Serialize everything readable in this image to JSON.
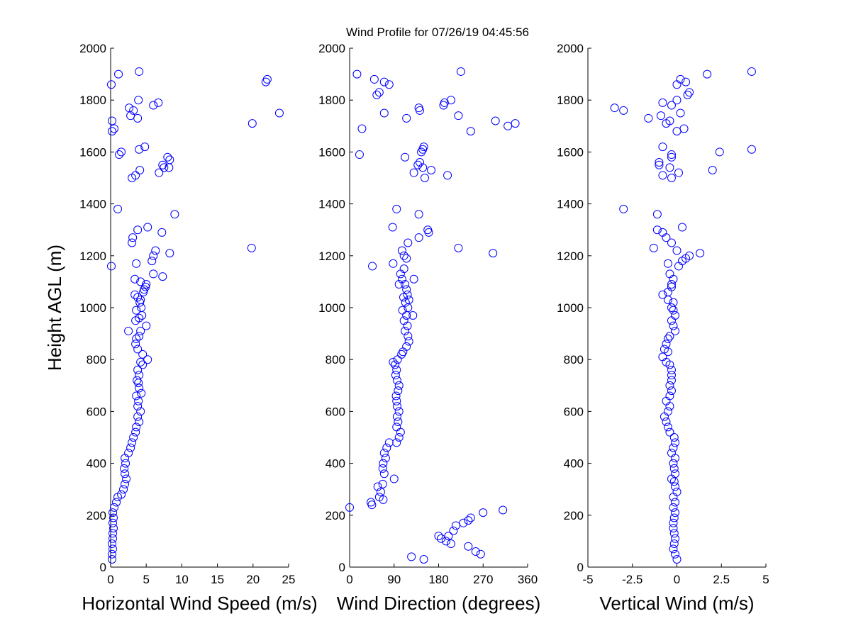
{
  "figure_title": "Wind Profile for  07/26/19 04:45:56",
  "chart_data": [
    {
      "type": "scatter",
      "xlabel": "Horizontal Wind Speed (m/s)",
      "ylabel": "Height AGL (m)",
      "xlim": [
        0,
        25
      ],
      "ylim": [
        0,
        2000
      ],
      "xticks": [
        0,
        5,
        10,
        15,
        20,
        25
      ],
      "xtick_labels": [
        "0",
        "5",
        "10",
        "15",
        "20",
        "25"
      ],
      "yticks": [
        0,
        200,
        400,
        600,
        800,
        1000,
        1200,
        1400,
        1600,
        1800,
        2000
      ],
      "ytick_labels": [
        "0",
        "200",
        "400",
        "600",
        "800",
        "1000",
        "1200",
        "1400",
        "1600",
        "1800",
        "2000"
      ],
      "points": [
        [
          0.2,
          30
        ],
        [
          0.2,
          50
        ],
        [
          0.3,
          70
        ],
        [
          0.2,
          90
        ],
        [
          0.3,
          110
        ],
        [
          0.3,
          130
        ],
        [
          0.4,
          150
        ],
        [
          0.3,
          170
        ],
        [
          0.4,
          190
        ],
        [
          0.3,
          210
        ],
        [
          0.5,
          230
        ],
        [
          0.8,
          250
        ],
        [
          1.0,
          270
        ],
        [
          1.5,
          280
        ],
        [
          1.8,
          300
        ],
        [
          2.0,
          320
        ],
        [
          2.2,
          340
        ],
        [
          2.0,
          360
        ],
        [
          1.9,
          380
        ],
        [
          2.1,
          400
        ],
        [
          2.0,
          420
        ],
        [
          2.5,
          440
        ],
        [
          2.8,
          460
        ],
        [
          3.0,
          480
        ],
        [
          3.2,
          500
        ],
        [
          3.5,
          520
        ],
        [
          3.6,
          540
        ],
        [
          4.0,
          560
        ],
        [
          3.8,
          580
        ],
        [
          4.2,
          600
        ],
        [
          3.8,
          620
        ],
        [
          3.9,
          640
        ],
        [
          3.6,
          660
        ],
        [
          4.3,
          670
        ],
        [
          4.0,
          690
        ],
        [
          3.9,
          710
        ],
        [
          3.7,
          720
        ],
        [
          4.0,
          740
        ],
        [
          3.8,
          760
        ],
        [
          4.5,
          780
        ],
        [
          4.2,
          790
        ],
        [
          5.2,
          800
        ],
        [
          4.5,
          820
        ],
        [
          3.8,
          840
        ],
        [
          3.5,
          860
        ],
        [
          3.6,
          880
        ],
        [
          4.0,
          890
        ],
        [
          4.2,
          910
        ],
        [
          2.5,
          910
        ],
        [
          5.0,
          930
        ],
        [
          3.5,
          950
        ],
        [
          4.0,
          960
        ],
        [
          4.4,
          970
        ],
        [
          3.6,
          990
        ],
        [
          4.3,
          1000
        ],
        [
          4.1,
          1020
        ],
        [
          4.2,
          1030
        ],
        [
          3.8,
          1040
        ],
        [
          3.4,
          1050
        ],
        [
          4.6,
          1060
        ],
        [
          4.7,
          1070
        ],
        [
          4.9,
          1080
        ],
        [
          5.0,
          1090
        ],
        [
          4.2,
          1100
        ],
        [
          3.4,
          1110
        ],
        [
          7.3,
          1120
        ],
        [
          6.0,
          1130
        ],
        [
          0.1,
          1160
        ],
        [
          3.6,
          1170
        ],
        [
          5.8,
          1180
        ],
        [
          6.0,
          1200
        ],
        [
          8.3,
          1210
        ],
        [
          6.3,
          1220
        ],
        [
          19.8,
          1230
        ],
        [
          3.0,
          1250
        ],
        [
          3.1,
          1270
        ],
        [
          7.2,
          1290
        ],
        [
          3.8,
          1300
        ],
        [
          5.2,
          1310
        ],
        [
          9.0,
          1360
        ],
        [
          1.0,
          1380
        ],
        [
          3.0,
          1500
        ],
        [
          3.5,
          1510
        ],
        [
          6.8,
          1520
        ],
        [
          4.1,
          1530
        ],
        [
          7.5,
          1540
        ],
        [
          8.2,
          1540
        ],
        [
          7.3,
          1550
        ],
        [
          8.3,
          1570
        ],
        [
          8.0,
          1580
        ],
        [
          1.2,
          1590
        ],
        [
          1.5,
          1600
        ],
        [
          4.0,
          1610
        ],
        [
          4.8,
          1620
        ],
        [
          0.2,
          1680
        ],
        [
          0.5,
          1690
        ],
        [
          19.9,
          1710
        ],
        [
          0.2,
          1720
        ],
        [
          3.8,
          1730
        ],
        [
          2.8,
          1740
        ],
        [
          23.7,
          1750
        ],
        [
          3.2,
          1760
        ],
        [
          2.6,
          1770
        ],
        [
          6.0,
          1780
        ],
        [
          6.7,
          1790
        ],
        [
          3.9,
          1800
        ],
        [
          0.1,
          1860
        ],
        [
          21.8,
          1870
        ],
        [
          22.0,
          1880
        ],
        [
          1.1,
          1900
        ],
        [
          4.0,
          1910
        ]
      ]
    },
    {
      "type": "scatter",
      "xlabel": "Wind Direction (degrees)",
      "ylabel": "",
      "xlim": [
        0,
        360
      ],
      "ylim": [
        0,
        2000
      ],
      "xticks": [
        0,
        90,
        180,
        270,
        360
      ],
      "xtick_labels": [
        "0",
        "90",
        "180",
        "270",
        "360"
      ],
      "yticks": [
        0,
        200,
        400,
        600,
        800,
        1000,
        1200,
        1400,
        1600,
        1800,
        2000
      ],
      "ytick_labels": [
        "0",
        "200",
        "400",
        "600",
        "800",
        "1000",
        "1200",
        "1400",
        "1600",
        "1800",
        "2000"
      ],
      "points": [
        [
          150,
          30
        ],
        [
          125,
          40
        ],
        [
          265,
          50
        ],
        [
          255,
          60
        ],
        [
          240,
          80
        ],
        [
          205,
          90
        ],
        [
          195,
          100
        ],
        [
          185,
          110
        ],
        [
          200,
          120
        ],
        [
          180,
          120
        ],
        [
          210,
          140
        ],
        [
          215,
          160
        ],
        [
          230,
          170
        ],
        [
          240,
          180
        ],
        [
          245,
          190
        ],
        [
          270,
          210
        ],
        [
          310,
          220
        ],
        [
          0,
          230
        ],
        [
          45,
          240
        ],
        [
          43,
          250
        ],
        [
          68,
          260
        ],
        [
          60,
          270
        ],
        [
          63,
          290
        ],
        [
          57,
          310
        ],
        [
          67,
          320
        ],
        [
          90,
          340
        ],
        [
          70,
          360
        ],
        [
          67,
          380
        ],
        [
          68,
          400
        ],
        [
          73,
          420
        ],
        [
          70,
          440
        ],
        [
          75,
          460
        ],
        [
          80,
          480
        ],
        [
          95,
          480
        ],
        [
          100,
          500
        ],
        [
          103,
          520
        ],
        [
          95,
          540
        ],
        [
          98,
          560
        ],
        [
          96,
          580
        ],
        [
          100,
          600
        ],
        [
          96,
          620
        ],
        [
          95,
          640
        ],
        [
          94,
          660
        ],
        [
          98,
          680
        ],
        [
          100,
          700
        ],
        [
          96,
          720
        ],
        [
          93,
          740
        ],
        [
          95,
          760
        ],
        [
          92,
          780
        ],
        [
          88,
          790
        ],
        [
          97,
          800
        ],
        [
          105,
          820
        ],
        [
          108,
          830
        ],
        [
          115,
          850
        ],
        [
          120,
          870
        ],
        [
          118,
          890
        ],
        [
          112,
          910
        ],
        [
          117,
          930
        ],
        [
          110,
          950
        ],
        [
          115,
          970
        ],
        [
          128,
          970
        ],
        [
          107,
          990
        ],
        [
          118,
          1000
        ],
        [
          113,
          1020
        ],
        [
          120,
          1030
        ],
        [
          109,
          1040
        ],
        [
          117,
          1050
        ],
        [
          115,
          1070
        ],
        [
          112,
          1090
        ],
        [
          100,
          1090
        ],
        [
          106,
          1110
        ],
        [
          130,
          1110
        ],
        [
          103,
          1130
        ],
        [
          110,
          1150
        ],
        [
          46,
          1160
        ],
        [
          88,
          1170
        ],
        [
          115,
          1190
        ],
        [
          110,
          1200
        ],
        [
          106,
          1220
        ],
        [
          290,
          1210
        ],
        [
          220,
          1230
        ],
        [
          118,
          1250
        ],
        [
          140,
          1270
        ],
        [
          160,
          1290
        ],
        [
          158,
          1300
        ],
        [
          87,
          1310
        ],
        [
          140,
          1360
        ],
        [
          95,
          1380
        ],
        [
          152,
          1500
        ],
        [
          198,
          1510
        ],
        [
          130,
          1520
        ],
        [
          165,
          1530
        ],
        [
          148,
          1540
        ],
        [
          138,
          1550
        ],
        [
          142,
          1560
        ],
        [
          112,
          1580
        ],
        [
          20,
          1590
        ],
        [
          145,
          1600
        ],
        [
          148,
          1610
        ],
        [
          150,
          1620
        ],
        [
          245,
          1680
        ],
        [
          25,
          1690
        ],
        [
          320,
          1700
        ],
        [
          335,
          1710
        ],
        [
          295,
          1720
        ],
        [
          115,
          1730
        ],
        [
          220,
          1740
        ],
        [
          70,
          1750
        ],
        [
          142,
          1760
        ],
        [
          140,
          1770
        ],
        [
          190,
          1780
        ],
        [
          192,
          1790
        ],
        [
          205,
          1800
        ],
        [
          55,
          1820
        ],
        [
          60,
          1830
        ],
        [
          80,
          1860
        ],
        [
          70,
          1870
        ],
        [
          50,
          1880
        ],
        [
          15,
          1900
        ],
        [
          225,
          1910
        ]
      ]
    },
    {
      "type": "scatter",
      "xlabel": "Vertical Wind (m/s)",
      "ylabel": "",
      "xlim": [
        -5,
        5
      ],
      "ylim": [
        0,
        2000
      ],
      "xticks": [
        -5,
        -2.5,
        0,
        2.5,
        5
      ],
      "xtick_labels": [
        "-5",
        "-2.5",
        "0",
        "2.5",
        "5"
      ],
      "yticks": [
        0,
        200,
        400,
        600,
        800,
        1000,
        1200,
        1400,
        1600,
        1800,
        2000
      ],
      "ytick_labels": [
        "0",
        "200",
        "400",
        "600",
        "800",
        "1000",
        "1200",
        "1400",
        "1600",
        "1800",
        "2000"
      ],
      "points": [
        [
          0.0,
          30
        ],
        [
          -0.1,
          50
        ],
        [
          -0.2,
          70
        ],
        [
          -0.15,
          90
        ],
        [
          -0.1,
          110
        ],
        [
          -0.15,
          130
        ],
        [
          -0.2,
          150
        ],
        [
          -0.2,
          170
        ],
        [
          -0.15,
          190
        ],
        [
          -0.1,
          210
        ],
        [
          -0.2,
          230
        ],
        [
          -0.1,
          250
        ],
        [
          -0.2,
          270
        ],
        [
          0.0,
          290
        ],
        [
          -0.1,
          310
        ],
        [
          -0.15,
          330
        ],
        [
          -0.3,
          340
        ],
        [
          -0.1,
          360
        ],
        [
          -0.15,
          380
        ],
        [
          -0.2,
          400
        ],
        [
          -0.1,
          420
        ],
        [
          -0.3,
          440
        ],
        [
          -0.2,
          460
        ],
        [
          -0.1,
          480
        ],
        [
          -0.15,
          500
        ],
        [
          -0.4,
          520
        ],
        [
          -0.5,
          540
        ],
        [
          -0.6,
          560
        ],
        [
          -0.7,
          580
        ],
        [
          -0.5,
          600
        ],
        [
          -0.4,
          620
        ],
        [
          -0.6,
          640
        ],
        [
          -0.4,
          660
        ],
        [
          -0.3,
          680
        ],
        [
          -0.4,
          700
        ],
        [
          -0.3,
          720
        ],
        [
          -0.3,
          740
        ],
        [
          -0.3,
          760
        ],
        [
          -0.4,
          780
        ],
        [
          -0.6,
          790
        ],
        [
          -0.8,
          810
        ],
        [
          -0.5,
          830
        ],
        [
          -0.7,
          840
        ],
        [
          -0.6,
          860
        ],
        [
          -0.5,
          880
        ],
        [
          -0.4,
          890
        ],
        [
          -0.1,
          910
        ],
        [
          -0.2,
          930
        ],
        [
          -0.3,
          950
        ],
        [
          -0.1,
          970
        ],
        [
          -0.2,
          990
        ],
        [
          -0.3,
          1000
        ],
        [
          -0.2,
          1020
        ],
        [
          -0.5,
          1030
        ],
        [
          -0.8,
          1050
        ],
        [
          -0.5,
          1060
        ],
        [
          -0.3,
          1080
        ],
        [
          -0.3,
          1090
        ],
        [
          -0.2,
          1110
        ],
        [
          -0.4,
          1130
        ],
        [
          0.1,
          1160
        ],
        [
          -0.5,
          1170
        ],
        [
          0.3,
          1180
        ],
        [
          0.5,
          1190
        ],
        [
          0.7,
          1200
        ],
        [
          1.3,
          1210
        ],
        [
          0.0,
          1220
        ],
        [
          -1.3,
          1230
        ],
        [
          -0.3,
          1250
        ],
        [
          -0.6,
          1270
        ],
        [
          -0.8,
          1290
        ],
        [
          -1.1,
          1300
        ],
        [
          0.3,
          1310
        ],
        [
          -1.1,
          1360
        ],
        [
          -3.0,
          1380
        ],
        [
          -0.3,
          1500
        ],
        [
          -0.8,
          1510
        ],
        [
          0.1,
          1520
        ],
        [
          2.0,
          1530
        ],
        [
          -0.4,
          1540
        ],
        [
          -1.0,
          1550
        ],
        [
          -1.0,
          1560
        ],
        [
          -0.3,
          1580
        ],
        [
          -0.3,
          1590
        ],
        [
          2.4,
          1600
        ],
        [
          4.2,
          1610
        ],
        [
          -0.8,
          1620
        ],
        [
          0.0,
          1680
        ],
        [
          0.4,
          1690
        ],
        [
          -0.6,
          1710
        ],
        [
          -0.4,
          1720
        ],
        [
          -1.6,
          1730
        ],
        [
          -0.9,
          1740
        ],
        [
          0.2,
          1750
        ],
        [
          -3.0,
          1760
        ],
        [
          -3.5,
          1770
        ],
        [
          -0.3,
          1780
        ],
        [
          -0.8,
          1790
        ],
        [
          0.0,
          1800
        ],
        [
          0.6,
          1820
        ],
        [
          0.7,
          1830
        ],
        [
          0.0,
          1860
        ],
        [
          0.5,
          1870
        ],
        [
          0.2,
          1880
        ],
        [
          1.7,
          1900
        ],
        [
          4.2,
          1910
        ]
      ]
    }
  ]
}
